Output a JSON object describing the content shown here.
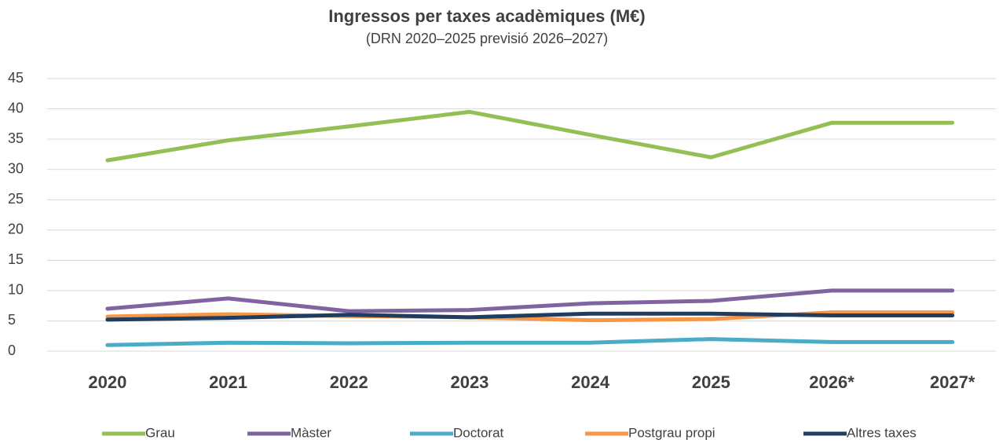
{
  "chart_data": {
    "type": "line",
    "title": "Ingressos per taxes acadèmiques (M€)",
    "subtitle": "(DRN 2020–2025 previsió 2026–2027)",
    "categories": [
      "2020",
      "2021",
      "2022",
      "2023",
      "2024",
      "2025",
      "2026*",
      "2027*"
    ],
    "series": [
      {
        "name": "Grau",
        "color": "#93bf55",
        "values": [
          31.5,
          34.8,
          37.1,
          39.5,
          35.7,
          32.0,
          37.7,
          37.7
        ]
      },
      {
        "name": "Màster",
        "color": "#8064a2",
        "values": [
          7.0,
          8.7,
          6.6,
          6.8,
          7.9,
          8.3,
          10.0,
          10.0
        ]
      },
      {
        "name": "Doctorat",
        "color": "#4bacc6",
        "values": [
          1.0,
          1.4,
          1.3,
          1.4,
          1.4,
          2.0,
          1.5,
          1.5
        ]
      },
      {
        "name": "Postgrau propi",
        "color": "#f79646",
        "values": [
          5.7,
          6.1,
          5.8,
          5.6,
          5.1,
          5.3,
          6.4,
          6.4
        ]
      },
      {
        "name": "Altres taxes",
        "color": "#1f3c61",
        "values": [
          5.2,
          5.5,
          6.0,
          5.6,
          6.2,
          6.2,
          5.9,
          5.9
        ]
      }
    ],
    "ylim": [
      0,
      45
    ],
    "yticks": [
      0,
      5,
      10,
      15,
      20,
      25,
      30,
      35,
      40,
      45
    ],
    "grid": true,
    "legend": "bottom"
  }
}
